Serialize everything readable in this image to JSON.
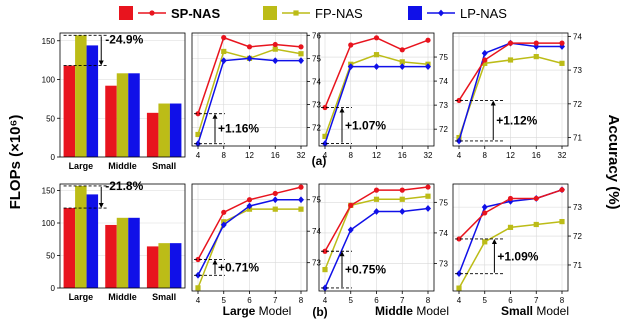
{
  "figure": {
    "ylabel_left": "FLOPs (×10⁶)",
    "ylabel_right": "Accuracy (%)",
    "row_labels": [
      "(a)",
      "(b)"
    ],
    "xlabel_parts": [
      {
        "bold": "Large",
        "rest": " Model"
      },
      {
        "bold": "Middle",
        "rest": " Model"
      },
      {
        "bold": "Small",
        "rest": " Model"
      }
    ],
    "legend": [
      {
        "name": "SP-NAS",
        "color": "#e8141e",
        "marker": "circle",
        "bold": true
      },
      {
        "name": "FP-NAS",
        "color": "#bcbc17",
        "marker": "square",
        "bold": false
      },
      {
        "name": "LP-NAS",
        "color": "#1010e8",
        "marker": "diamond",
        "bold": false
      }
    ]
  },
  "chart_data": [
    {
      "id": "a-bar",
      "type": "bar",
      "categories": [
        "Large",
        "Middle",
        "Small"
      ],
      "series": [
        {
          "name": "SP-NAS",
          "values": [
            118,
            92,
            57
          ]
        },
        {
          "name": "FP-NAS",
          "values": [
            157,
            108,
            69
          ]
        },
        {
          "name": "LP-NAS",
          "values": [
            144,
            108,
            69
          ]
        }
      ],
      "ylim": [
        0,
        160
      ],
      "yticks": [
        0,
        50,
        100,
        150
      ],
      "annotation": "-24.9%"
    },
    {
      "id": "a-large",
      "type": "line",
      "x": [
        4,
        8,
        12,
        16,
        32
      ],
      "series": [
        {
          "name": "SP-NAS",
          "values": [
            72.6,
            75.9,
            75.5,
            75.6,
            75.5
          ]
        },
        {
          "name": "FP-NAS",
          "values": [
            71.7,
            75.3,
            75.0,
            75.4,
            75.2
          ]
        },
        {
          "name": "LP-NAS",
          "values": [
            71.3,
            74.9,
            75.0,
            74.9,
            74.9
          ]
        }
      ],
      "ylim": [
        71.2,
        76.1
      ],
      "yticks": [
        72,
        73,
        74,
        75,
        76
      ],
      "annotation": "+1.16%"
    },
    {
      "id": "a-middle",
      "type": "line",
      "x": [
        4,
        8,
        12,
        16,
        32
      ],
      "series": [
        {
          "name": "SP-NAS",
          "values": [
            72.9,
            75.5,
            75.8,
            75.3,
            75.7
          ]
        },
        {
          "name": "FP-NAS",
          "values": [
            71.7,
            74.7,
            75.1,
            74.8,
            74.7
          ]
        },
        {
          "name": "LP-NAS",
          "values": [
            71.4,
            74.6,
            74.6,
            74.6,
            74.6
          ]
        }
      ],
      "ylim": [
        71.3,
        76.0
      ],
      "yticks": [
        72,
        73,
        74,
        75
      ],
      "annotation": "+1.07%"
    },
    {
      "id": "a-small",
      "type": "line",
      "x": [
        4,
        8,
        12,
        16,
        32
      ],
      "series": [
        {
          "name": "SP-NAS",
          "values": [
            72.1,
            73.3,
            73.8,
            73.8,
            73.8
          ]
        },
        {
          "name": "FP-NAS",
          "values": [
            71.0,
            73.2,
            73.3,
            73.4,
            73.2
          ]
        },
        {
          "name": "LP-NAS",
          "values": [
            70.9,
            73.5,
            73.8,
            73.7,
            73.7
          ]
        }
      ],
      "ylim": [
        70.75,
        74.1
      ],
      "yticks": [
        71,
        72,
        73,
        74
      ],
      "annotation": "+1.12%"
    },
    {
      "id": "b-bar",
      "type": "bar",
      "categories": [
        "Large",
        "Middle",
        "Small"
      ],
      "series": [
        {
          "name": "SP-NAS",
          "values": [
            123,
            97,
            64
          ]
        },
        {
          "name": "FP-NAS",
          "values": [
            157,
            108,
            69
          ]
        },
        {
          "name": "LP-NAS",
          "values": [
            144,
            108,
            69
          ]
        }
      ],
      "ylim": [
        0,
        160
      ],
      "yticks": [
        0,
        50,
        100,
        150
      ],
      "annotation": "-21.8%"
    },
    {
      "id": "b-large",
      "type": "line",
      "x": [
        4,
        5,
        6,
        7,
        8
      ],
      "series": [
        {
          "name": "SP-NAS",
          "values": [
            73.1,
            74.6,
            75.0,
            75.2,
            75.4
          ]
        },
        {
          "name": "FP-NAS",
          "values": [
            72.2,
            74.3,
            74.7,
            74.7,
            74.7
          ]
        },
        {
          "name": "LP-NAS",
          "values": [
            72.6,
            74.2,
            74.8,
            75.0,
            75.0
          ]
        }
      ],
      "ylim": [
        72.1,
        75.5
      ],
      "yticks": [
        73,
        74,
        75
      ],
      "annotation": "+0.71%"
    },
    {
      "id": "b-middle",
      "type": "line",
      "x": [
        4,
        5,
        6,
        7,
        8
      ],
      "series": [
        {
          "name": "SP-NAS",
          "values": [
            73.4,
            74.9,
            75.4,
            75.4,
            75.5
          ]
        },
        {
          "name": "FP-NAS",
          "values": [
            72.8,
            74.9,
            75.1,
            75.1,
            75.2
          ]
        },
        {
          "name": "LP-NAS",
          "values": [
            72.2,
            74.1,
            74.7,
            74.7,
            74.8
          ]
        }
      ],
      "ylim": [
        72.1,
        75.6
      ],
      "yticks": [
        73,
        74,
        75
      ],
      "annotation": "+0.75%"
    },
    {
      "id": "b-small",
      "type": "line",
      "x": [
        4,
        5,
        6,
        7,
        8
      ],
      "series": [
        {
          "name": "SP-NAS",
          "values": [
            71.9,
            72.8,
            73.3,
            73.3,
            73.6
          ]
        },
        {
          "name": "FP-NAS",
          "values": [
            70.2,
            71.8,
            72.3,
            72.4,
            72.5
          ]
        },
        {
          "name": "LP-NAS",
          "values": [
            70.7,
            73.0,
            73.2,
            73.3,
            73.6
          ]
        }
      ],
      "ylim": [
        70.1,
        73.8
      ],
      "yticks": [
        71,
        72,
        73
      ],
      "annotation": "+1.09%"
    }
  ]
}
